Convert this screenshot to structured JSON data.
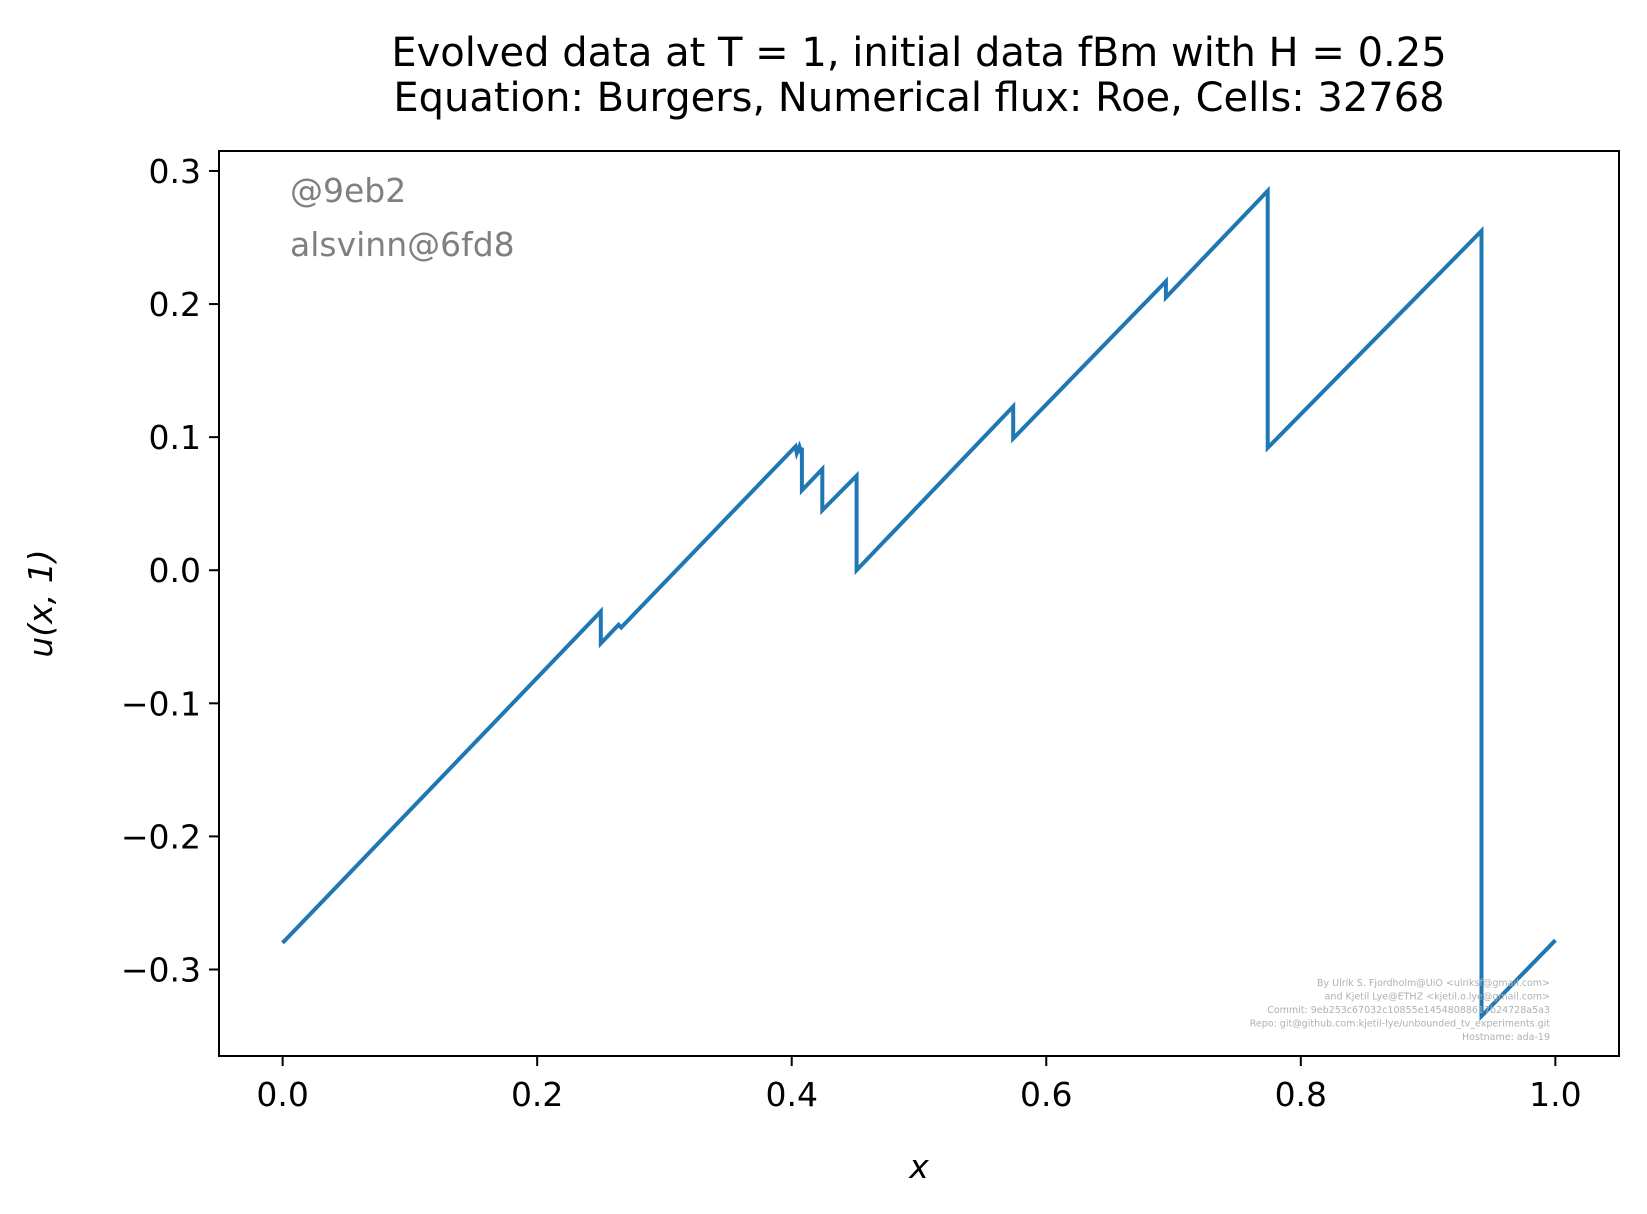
{
  "chart_data": {
    "type": "line",
    "title": [
      "Evolved data at T = 1, initial data fBm with H = 0.25",
      "Equation: Burgers, Numerical flux: Roe, Cells: 32768"
    ],
    "xlabel": "x",
    "ylabel": "u(x, 1)",
    "xlim": [
      -0.05,
      1.05
    ],
    "ylim": [
      -0.365,
      0.315
    ],
    "xticks": [
      0.0,
      0.2,
      0.4,
      0.6,
      0.8,
      1.0
    ],
    "xtick_labels": [
      "0.0",
      "0.2",
      "0.4",
      "0.6",
      "0.8",
      "1.0"
    ],
    "yticks": [
      -0.3,
      -0.2,
      -0.1,
      0.0,
      0.1,
      0.2,
      0.3
    ],
    "ytick_labels": [
      "−0.3",
      "−0.2",
      "−0.1",
      "0.0",
      "0.1",
      "0.2",
      "0.3"
    ],
    "grid": false,
    "line_color": "#1f77b4",
    "series": [
      {
        "x": [
          0.0,
          0.25,
          0.25,
          0.264,
          0.266,
          0.403,
          0.404,
          0.406,
          0.407,
          0.408,
          0.408,
          0.424,
          0.424,
          0.451,
          0.451,
          0.574,
          0.574,
          0.694,
          0.694,
          0.774,
          0.774,
          0.942,
          0.942,
          1.0
        ],
        "y": [
          -0.28,
          -0.031,
          -0.055,
          -0.041,
          -0.043,
          0.093,
          0.088,
          0.093,
          0.09,
          0.092,
          0.06,
          0.076,
          0.045,
          0.071,
          0.0,
          0.123,
          0.099,
          0.217,
          0.205,
          0.285,
          0.092,
          0.255,
          -0.335,
          -0.278
        ]
      }
    ]
  },
  "watermark": {
    "line1": "@9eb2",
    "line2": "alsvinn@6fd8"
  },
  "credits": [
    "By Ulrik S. Fjordholm@UiO <ulriksf@gmail.com>",
    "and Kjetil Lye@ETHZ <kjetil.o.lye@gmail.com>",
    "Commit: 9eb253c67032c10855e14548088617b24728a5a3",
    "Repo: git@github.com:kjetil-lye/unbounded_tv_experiments.git",
    "Hostname: ada-19"
  ]
}
